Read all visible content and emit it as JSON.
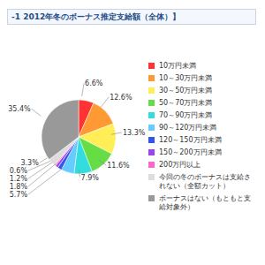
{
  "chart_data": {
    "type": "pie",
    "title": "-1 2012年冬のボーナス推定支給額（全体）】",
    "categories": [
      "10万円未満",
      "10～30万円未満",
      "30～50万円未満",
      "50～70万円未満",
      "70～90万円未満",
      "90～120万円未満",
      "120～150万円未満",
      "150～200万円未満",
      "200万円以上",
      "今回の冬のボーナスは支給されない（全額カット）",
      "ボーナスはない（もともと支給対象外）"
    ],
    "values": [
      6.6,
      12.6,
      13.3,
      11.6,
      7.9,
      5.7,
      1.8,
      1.2,
      0.6,
      3.3,
      35.4
    ],
    "value_labels": [
      "6.6%",
      "12.6%",
      "13.3%",
      "11.6%",
      "7.9%",
      "5.7%",
      "1.8%",
      "1.2%",
      "0.6%",
      "3.3%",
      "35.4%"
    ],
    "colors": [
      "#ff3333",
      "#ff9933",
      "#ffee55",
      "#66dd44",
      "#33dddd",
      "#66ccff",
      "#3355ee",
      "#9944ee",
      "#ff66cc",
      "#dddddd",
      "#999999"
    ],
    "data_labels": true,
    "legend": "right"
  }
}
